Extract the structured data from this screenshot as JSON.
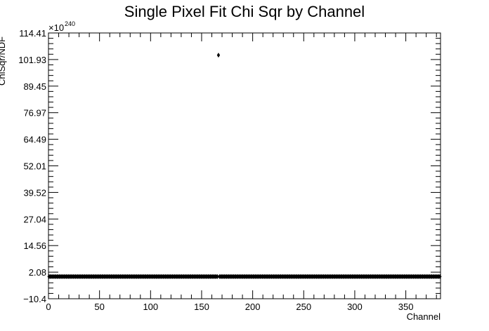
{
  "chart_data": {
    "type": "scatter",
    "title": "Single Pixel Fit Chi Sqr by Channel",
    "xlabel": "Channel",
    "ylabel": "ChiSqr/NDF",
    "y_exponent_label": "×10",
    "y_exponent_power": "240",
    "xlim": [
      0,
      384
    ],
    "ylim": [
      -10.4,
      114.41
    ],
    "x_ticks": [
      0,
      50,
      100,
      150,
      200,
      250,
      300,
      350
    ],
    "x_tick_labels": [
      "0",
      "50",
      "100",
      "150",
      "200",
      "250",
      "300",
      "350"
    ],
    "y_ticks": [
      -10.4,
      2.08,
      14.56,
      27.04,
      39.52,
      52.01,
      64.49,
      76.97,
      89.45,
      101.93,
      114.41
    ],
    "y_tick_labels": [
      "−10.4",
      "2.08",
      "14.56",
      "27.04",
      "39.52",
      "52.01",
      "64.49",
      "76.97",
      "89.45",
      "101.93",
      "114.41"
    ],
    "grid": false,
    "legend": "none",
    "marker_color": "#000000",
    "series": [
      {
        "baseline_value": 0,
        "baseline_x_range": [
          0,
          383
        ],
        "outlier_x": 166,
        "outlier_y": 104.0
      }
    ]
  }
}
